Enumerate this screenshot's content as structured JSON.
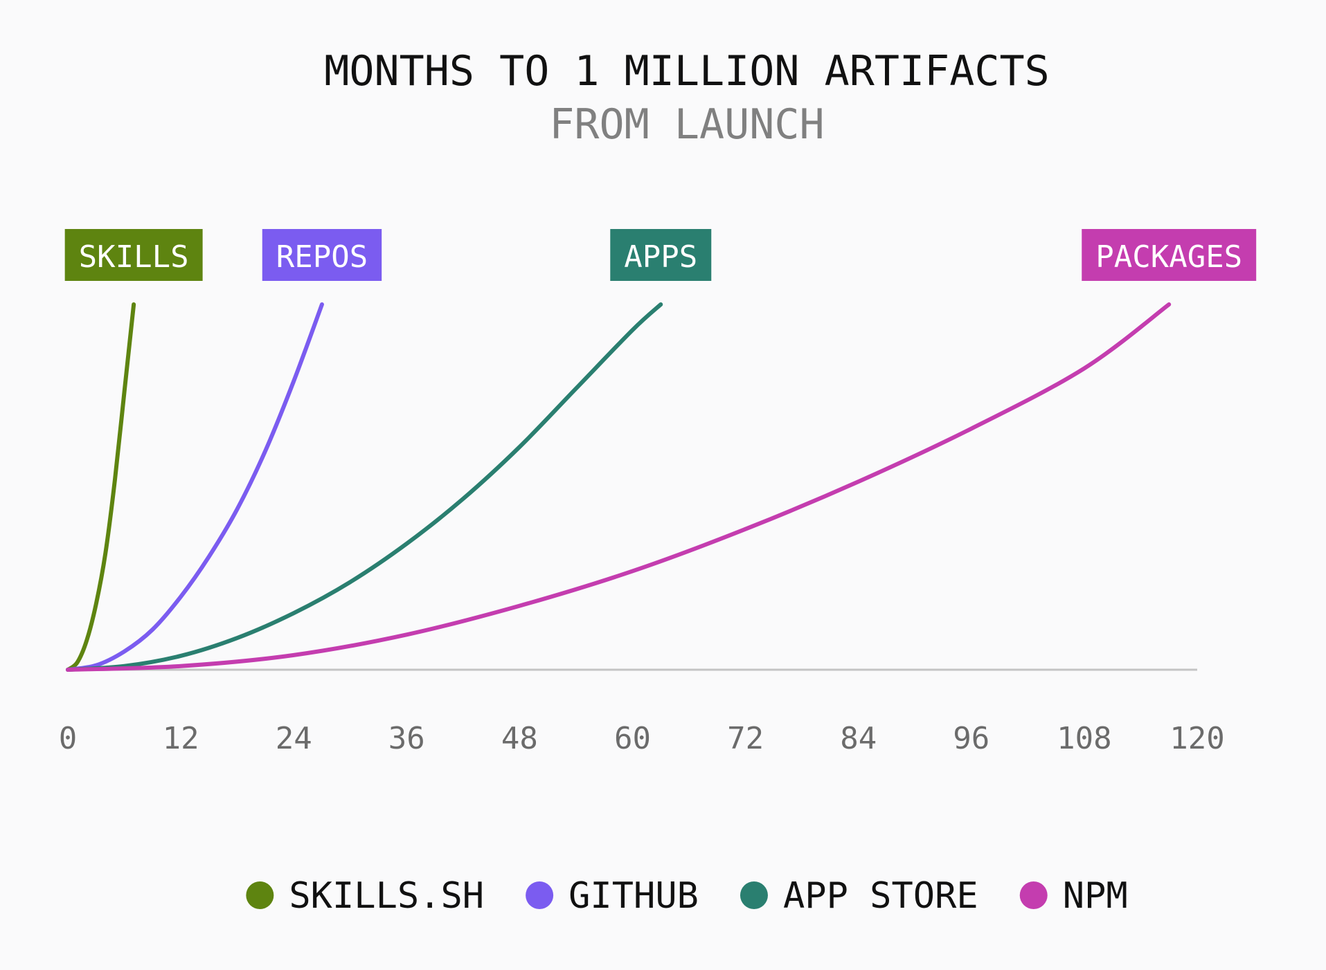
{
  "chart_data": {
    "type": "line",
    "title": "MONTHS TO 1 MILLION ARTIFACTS",
    "subtitle": "FROM LAUNCH",
    "xlabel": "",
    "ylabel": "",
    "xlim": [
      0,
      120
    ],
    "ylim": [
      0,
      1000000
    ],
    "x_ticks": [
      0,
      12,
      24,
      36,
      48,
      60,
      72,
      84,
      96,
      108,
      120
    ],
    "grid": false,
    "legend": "bottom",
    "series": [
      {
        "name": "SKILLS.SH",
        "label": "SKILLS",
        "color": "#5e8410",
        "x": [
          0,
          1,
          2,
          3,
          4,
          5,
          6,
          7
        ],
        "y": [
          0,
          20000,
          80000,
          180000,
          320000,
          520000,
          760000,
          1000000
        ]
      },
      {
        "name": "GITHUB",
        "label": "REPOS",
        "color": "#7b5cf0",
        "x": [
          0,
          3,
          6,
          9,
          12,
          15,
          18,
          21,
          24,
          27
        ],
        "y": [
          0,
          12000,
          50000,
          110000,
          200000,
          310000,
          440000,
          600000,
          790000,
          1000000
        ]
      },
      {
        "name": "APP STORE",
        "label": "APPS",
        "color": "#2a7f70",
        "x": [
          0,
          6,
          12,
          18,
          24,
          30,
          36,
          42,
          48,
          54,
          60,
          63
        ],
        "y": [
          0,
          10000,
          38000,
          87000,
          155000,
          240000,
          345000,
          468000,
          610000,
          770000,
          930000,
          1000000
        ]
      },
      {
        "name": "NPM",
        "label": "PACKAGES",
        "color": "#c43daf",
        "x": [
          0,
          12,
          24,
          36,
          48,
          60,
          72,
          84,
          96,
          108,
          117
        ],
        "y": [
          0,
          10000,
          40000,
          96000,
          175000,
          270000,
          385000,
          515000,
          660000,
          825000,
          1000000
        ]
      }
    ]
  }
}
